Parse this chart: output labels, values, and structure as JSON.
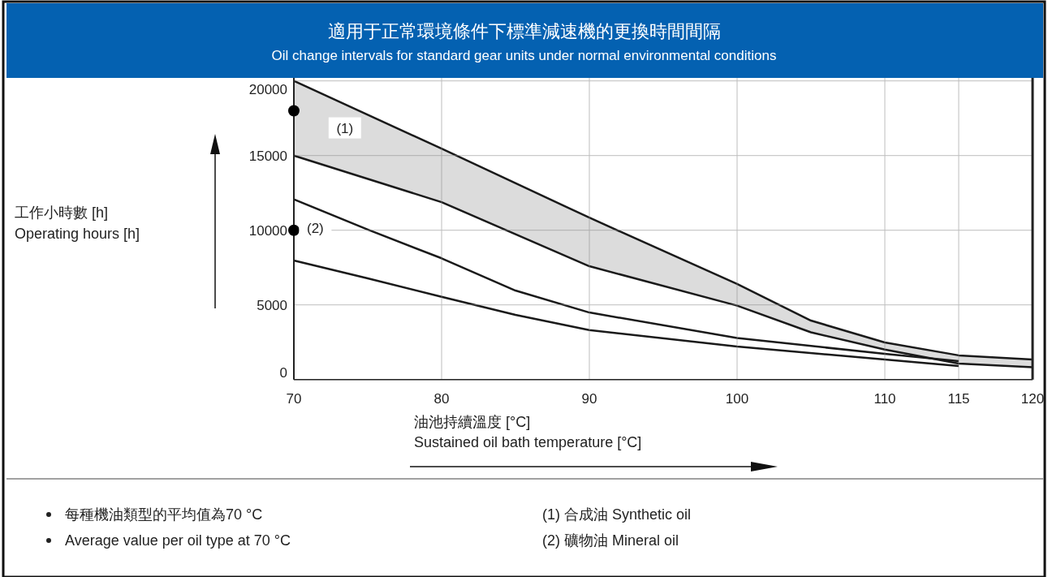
{
  "chart_data": {
    "type": "area",
    "title": "適用于正常環境條件下標準減速機的更換時間間隔",
    "subtitle": "Oil change intervals for standard gear units under normal environmental conditions",
    "xlabel": "油池持續溫度 [°C]\nSustained oil bath temperature [°C]",
    "xlim": [
      70,
      120
    ],
    "ylim": [
      0,
      20200
    ],
    "xticks": [
      70,
      80,
      90,
      100,
      110,
      115,
      120
    ],
    "yticks": [
      0,
      5000,
      10000,
      15000,
      20000
    ],
    "grid": true,
    "series": [
      {
        "name": "(1)",
        "color": "#dcdcdc",
        "x": [
          70,
          80,
          90,
          100,
          105,
          110,
          115,
          120
        ],
        "values": [
          20000,
          15460,
          10840,
          6400,
          3950,
          2480,
          1620,
          1340
        ]
      },
      {
        "color": "#ffffff",
        "x": [
          70,
          80,
          90,
          100,
          105,
          110,
          115,
          120
        ],
        "values": [
          15000,
          11880,
          7590,
          4950,
          3160,
          2010,
          1070,
          820
        ]
      },
      {
        "name": "(2)",
        "type": "line",
        "color": "#1a1a1a",
        "x": [
          70,
          75,
          80,
          85,
          90,
          100,
          110,
          115
        ],
        "values": [
          12070,
          10040,
          8120,
          5960,
          4490,
          2780,
          1720,
          1230
        ]
      },
      {
        "type": "line",
        "color": "#1a1a1a",
        "x": [
          70,
          75,
          80,
          85,
          90,
          100,
          110,
          115
        ],
        "values": [
          7970,
          6780,
          5540,
          4330,
          3310,
          2210,
          1340,
          910
        ]
      },
      {
        "type": "scatter",
        "color": "#000000",
        "marker": "circle",
        "x": [
          70,
          70
        ],
        "values": [
          18000,
          10000
        ]
      }
    ],
    "annotations": [
      "工作小時數 [h]\nOperating hours [h]",
      "每種機油類型的平均值為70 °C",
      "Average value per oil type at 70 °C",
      "(1)  合成油 Synthetic oil",
      "(2)  礦物油 Mineral oil"
    ]
  }
}
